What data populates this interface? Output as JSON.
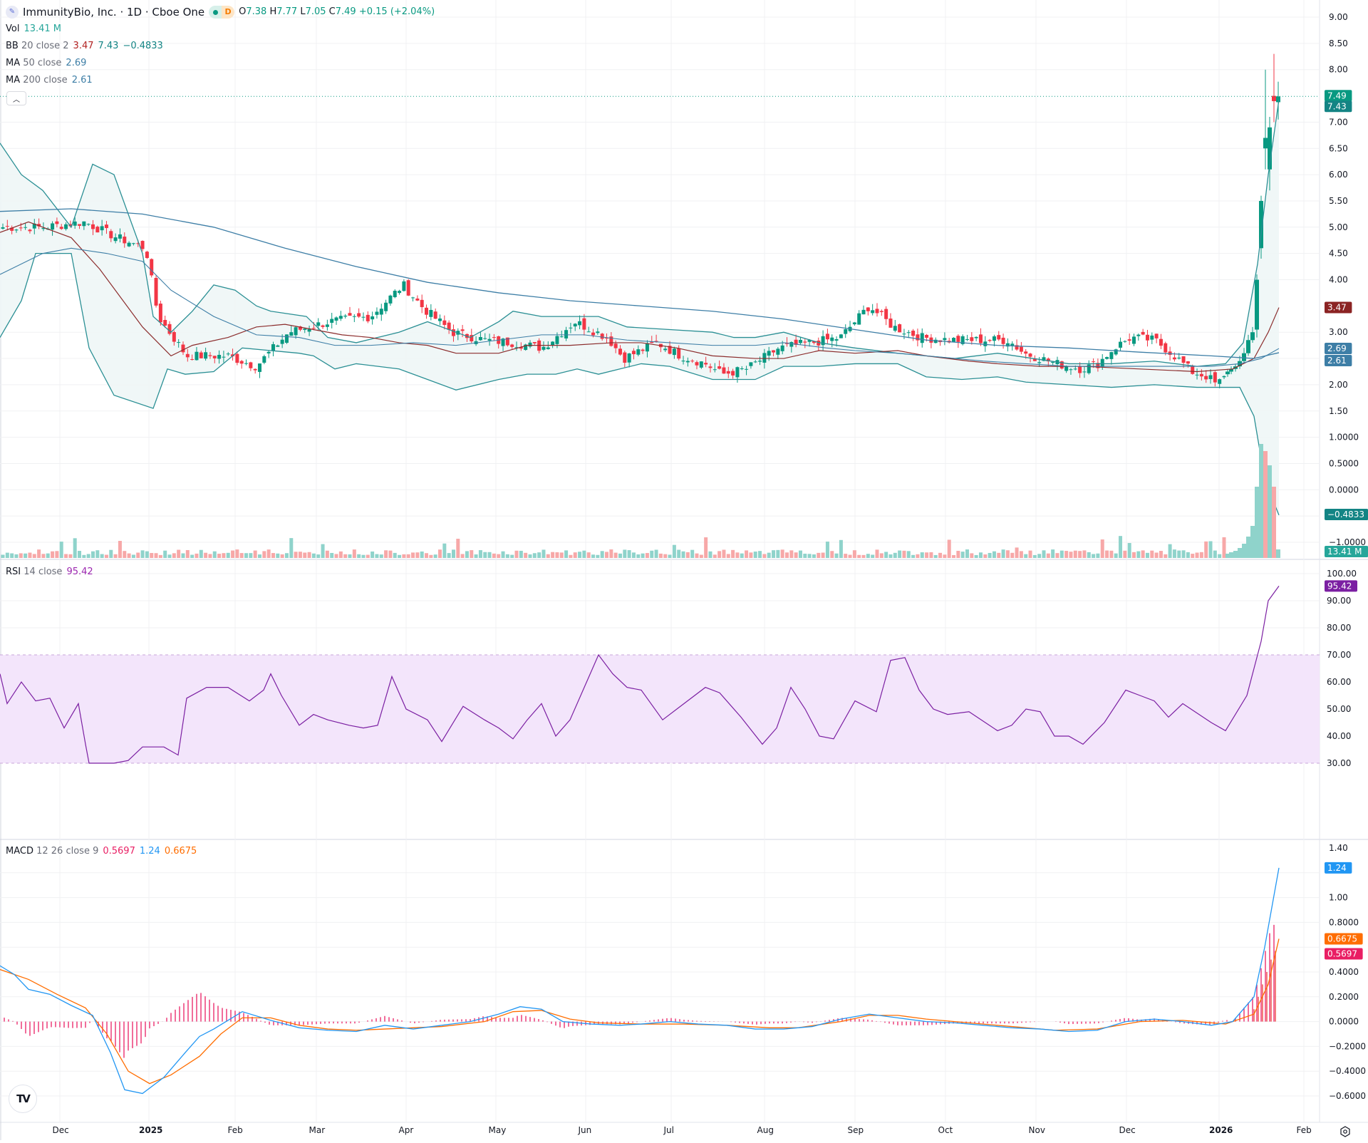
{
  "header": {
    "symbol": "ImmunityBio, Inc. · 1D · Cboe One",
    "market_status_badge": "D",
    "ohlc": {
      "o_label": "O",
      "o": "7.38",
      "h_label": "H",
      "h": "7.77",
      "l_label": "L",
      "l": "7.05",
      "c_label": "C",
      "c": "7.49",
      "change": "+0.15 (+2.04%)"
    }
  },
  "indicators": {
    "vol": {
      "label": "Vol",
      "value": "13.41 M"
    },
    "bb": {
      "label": "BB",
      "params": "20 close 2",
      "basis": "3.47",
      "upper": "7.43",
      "lower": "−0.4833"
    },
    "ma50": {
      "label": "MA",
      "params": "50 close",
      "value": "2.69"
    },
    "ma200": {
      "label": "MA",
      "params": "200 close",
      "value": "2.61"
    },
    "rsi": {
      "label": "RSI",
      "params": "14 close",
      "value": "95.42"
    },
    "macd": {
      "label": "MACD",
      "params": "12 26 close 9",
      "hist": "0.5697",
      "macd": "1.24",
      "signal": "0.6675"
    }
  },
  "colors": {
    "up": "#089981",
    "down": "#f23645",
    "vol_up": "#8fd3cb",
    "vol_down": "#f7a8a8",
    "bb_band": "#2a8f94",
    "bb_basis": "#8b2c2c",
    "bb_fill": "#eef6f6",
    "ma": "#3d7ea6",
    "rsi": "#7b1fa2",
    "rsi_fill": "#f3e5fb",
    "macd": "#2196f3",
    "signal": "#ff6d00",
    "hist": "#e91e63",
    "grid": "#f0f1f3"
  },
  "price_axis": {
    "ticks": [
      "9.00",
      "8.50",
      "8.00",
      "7.49",
      "7.00",
      "6.50",
      "6.00",
      "5.50",
      "5.00",
      "4.50",
      "4.00",
      "3.47",
      "3.00",
      "2.00",
      "1.50",
      "1.0000",
      "0.5000",
      "0.0000",
      "−1.0000"
    ],
    "labels": [
      {
        "text": "7.49",
        "color": "#089981"
      },
      {
        "text": "7.43",
        "color": "#138484"
      },
      {
        "text": "3.47",
        "color": "#8b2323"
      },
      {
        "text": "2.69",
        "color": "#3d7ea6"
      },
      {
        "text": "2.61",
        "color": "#3d7ea6"
      },
      {
        "text": "−0.4833",
        "color": "#138484"
      },
      {
        "text": "13.41 M",
        "color": "#26a69a"
      }
    ]
  },
  "rsi_axis": {
    "ticks": [
      "100.00",
      "90.00",
      "80.00",
      "70.00",
      "60.00",
      "50.00",
      "40.00",
      "30.00"
    ],
    "label": {
      "text": "95.42",
      "color": "#7b1fa2"
    }
  },
  "macd_axis": {
    "ticks": [
      "1.40",
      "1.00",
      "0.8000",
      "0.4000",
      "0.2000",
      "0.0000",
      "−0.2000",
      "−0.4000",
      "−0.6000"
    ],
    "labels": [
      {
        "text": "1.24",
        "color": "#2196f3"
      },
      {
        "text": "0.6675",
        "color": "#ff6d00"
      },
      {
        "text": "0.5697",
        "color": "#e91e63"
      }
    ]
  },
  "time_axis": {
    "labels": [
      "Dec",
      "2025",
      "Feb",
      "Mar",
      "Apr",
      "May",
      "Jun",
      "Jul",
      "Aug",
      "Sep",
      "Oct",
      "Nov",
      "Dec",
      "2026",
      "Feb"
    ]
  },
  "chart_data": [
    {
      "type": "candlestick",
      "title": "ImmunityBio, Inc. · 1D · Cboe One",
      "x": [
        "Dec 2024",
        "Jan 2025",
        "Feb",
        "Mar",
        "Apr",
        "May",
        "Jun",
        "Jul",
        "Aug",
        "Sep",
        "Oct",
        "Nov",
        "Dec",
        "Jan 2026"
      ],
      "close_monthly_approx": [
        5.0,
        2.6,
        3.3,
        2.9,
        2.6,
        2.1,
        3.3,
        2.8,
        2.4,
        2.8,
        2.6,
        2.2,
        2.25,
        7.49
      ],
      "ylim": [
        -1.2,
        9.2
      ],
      "last": {
        "open": 7.38,
        "high": 7.77,
        "low": 7.05,
        "close": 7.49,
        "change": 0.15,
        "change_pct": 2.04
      },
      "overlays": {
        "bb_basis": 3.47,
        "bb_upper": 7.43,
        "bb_lower": -0.4833,
        "ma50": 2.69,
        "ma200": 2.61
      },
      "volume_last": "13.41 M"
    },
    {
      "type": "line",
      "title": "RSI 14 close",
      "ylim": [
        28,
        100
      ],
      "x": [
        "Dec 2024",
        "Jan 2025",
        "Feb",
        "Mar",
        "Apr",
        "May",
        "Jun",
        "Jul",
        "Aug",
        "Sep",
        "Oct",
        "Nov",
        "Dec",
        "Jan 2026"
      ],
      "values": [
        50,
        30,
        55,
        45,
        42,
        30,
        70,
        45,
        38,
        68,
        48,
        38,
        50,
        95.42
      ],
      "bands": {
        "upper": 70,
        "lower": 30
      }
    },
    {
      "type": "line",
      "title": "MACD 12 26 close 9",
      "ylim": [
        -0.7,
        1.4
      ],
      "x": [
        "Dec 2024",
        "Jan 2025",
        "Feb",
        "Mar",
        "Apr",
        "May",
        "Jun",
        "Jul",
        "Aug",
        "Sep",
        "Oct",
        "Nov",
        "Dec",
        "Jan 2026"
      ],
      "series": [
        {
          "name": "MACD",
          "values": [
            0.3,
            -0.58,
            0.1,
            -0.05,
            -0.08,
            -0.1,
            0.18,
            0.0,
            -0.08,
            0.05,
            0.0,
            -0.1,
            0.0,
            1.24
          ]
        },
        {
          "name": "Signal",
          "values": [
            0.35,
            -0.5,
            0.05,
            -0.04,
            -0.07,
            -0.08,
            0.14,
            0.0,
            -0.07,
            0.04,
            0.0,
            -0.08,
            0.0,
            0.6675
          ]
        },
        {
          "name": "Histogram",
          "values": [
            -0.05,
            -0.25,
            0.1,
            -0.01,
            -0.01,
            -0.02,
            0.1,
            0.0,
            -0.01,
            0.01,
            0.0,
            -0.02,
            0.0,
            0.5697
          ]
        }
      ]
    }
  ]
}
